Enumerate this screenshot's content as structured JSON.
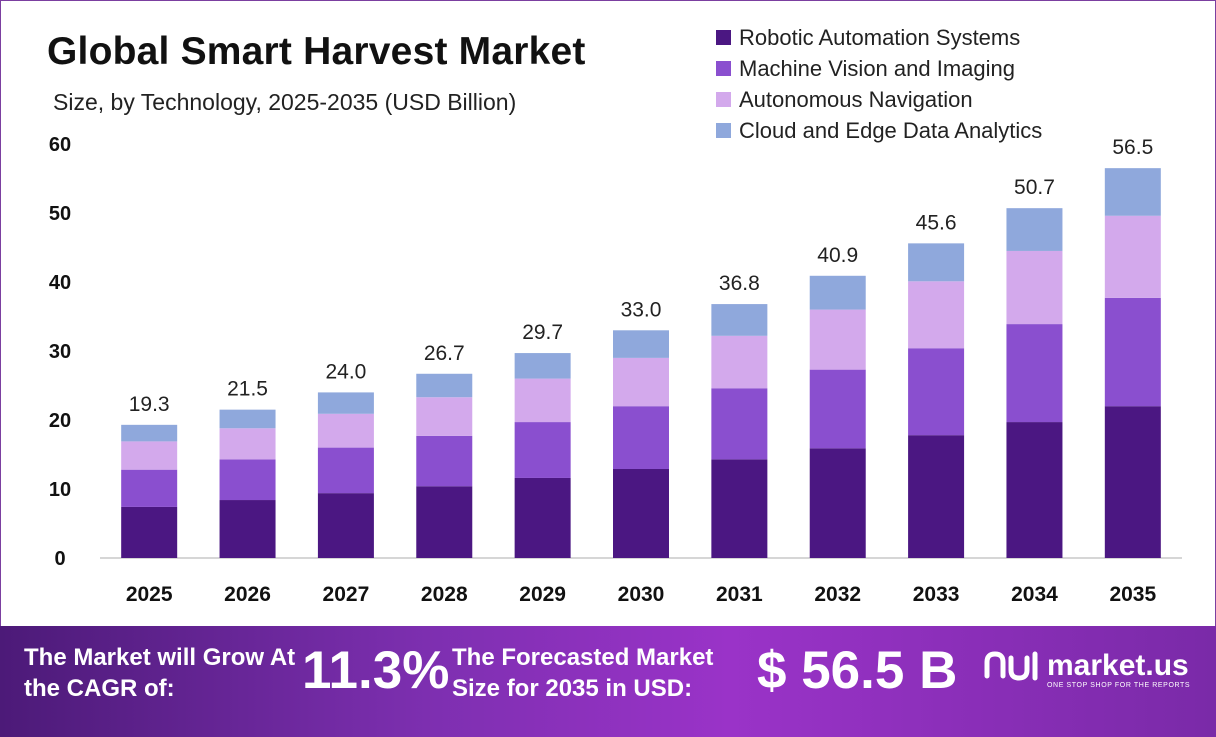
{
  "title": "Global Smart Harvest Market",
  "subtitle": "Size, by Technology, 2025-2035 (USD Billion)",
  "colors": {
    "robotic": "#4b1782",
    "vision": "#8a4fcf",
    "navigation": "#d3a9ec",
    "cloud": "#8fa8dc",
    "axis": "#c8c8c8",
    "footer_start": "#4c1a78",
    "footer_end": "#9a33c8"
  },
  "chart_data": {
    "type": "bar",
    "stacked": true,
    "categories": [
      "2025",
      "2026",
      "2027",
      "2028",
      "2029",
      "2030",
      "2031",
      "2032",
      "2033",
      "2034",
      "2035"
    ],
    "series": [
      {
        "name": "Robotic Automation Systems",
        "color": "#4b1782",
        "values": [
          7.4,
          8.4,
          9.4,
          10.4,
          11.6,
          12.9,
          14.3,
          15.9,
          17.8,
          19.7,
          22.0
        ]
      },
      {
        "name": "Machine Vision and Imaging",
        "color": "#8a4fcf",
        "values": [
          5.4,
          5.9,
          6.6,
          7.3,
          8.1,
          9.1,
          10.3,
          11.4,
          12.6,
          14.2,
          15.7
        ]
      },
      {
        "name": "Autonomous Navigation",
        "color": "#d3a9ec",
        "values": [
          4.1,
          4.5,
          4.9,
          5.6,
          6.3,
          7.0,
          7.6,
          8.7,
          9.7,
          10.6,
          11.9
        ]
      },
      {
        "name": "Cloud and Edge Data Analytics",
        "color": "#8fa8dc",
        "values": [
          2.4,
          2.7,
          3.1,
          3.4,
          3.7,
          4.0,
          4.6,
          4.9,
          5.5,
          6.2,
          6.9
        ]
      }
    ],
    "totals": [
      "19.3",
      "21.5",
      "24.0",
      "26.7",
      "29.7",
      "33.0",
      "36.8",
      "40.9",
      "45.6",
      "50.7",
      "56.5"
    ],
    "ylim": [
      0,
      60
    ],
    "yticks": [
      "0",
      "10",
      "20",
      "30",
      "40",
      "50",
      "60"
    ],
    "grid": false,
    "legend_position": "top-right"
  },
  "footer": {
    "cagr_label": "The Market will Grow At the CAGR of:",
    "cagr_value": "11.3%",
    "forecast_label": "The Forecasted Market Size for 2035 in USD:",
    "forecast_value": "$ 56.5 B",
    "brand": "market.us",
    "tagline": "ONE STOP SHOP FOR THE REPORTS"
  }
}
